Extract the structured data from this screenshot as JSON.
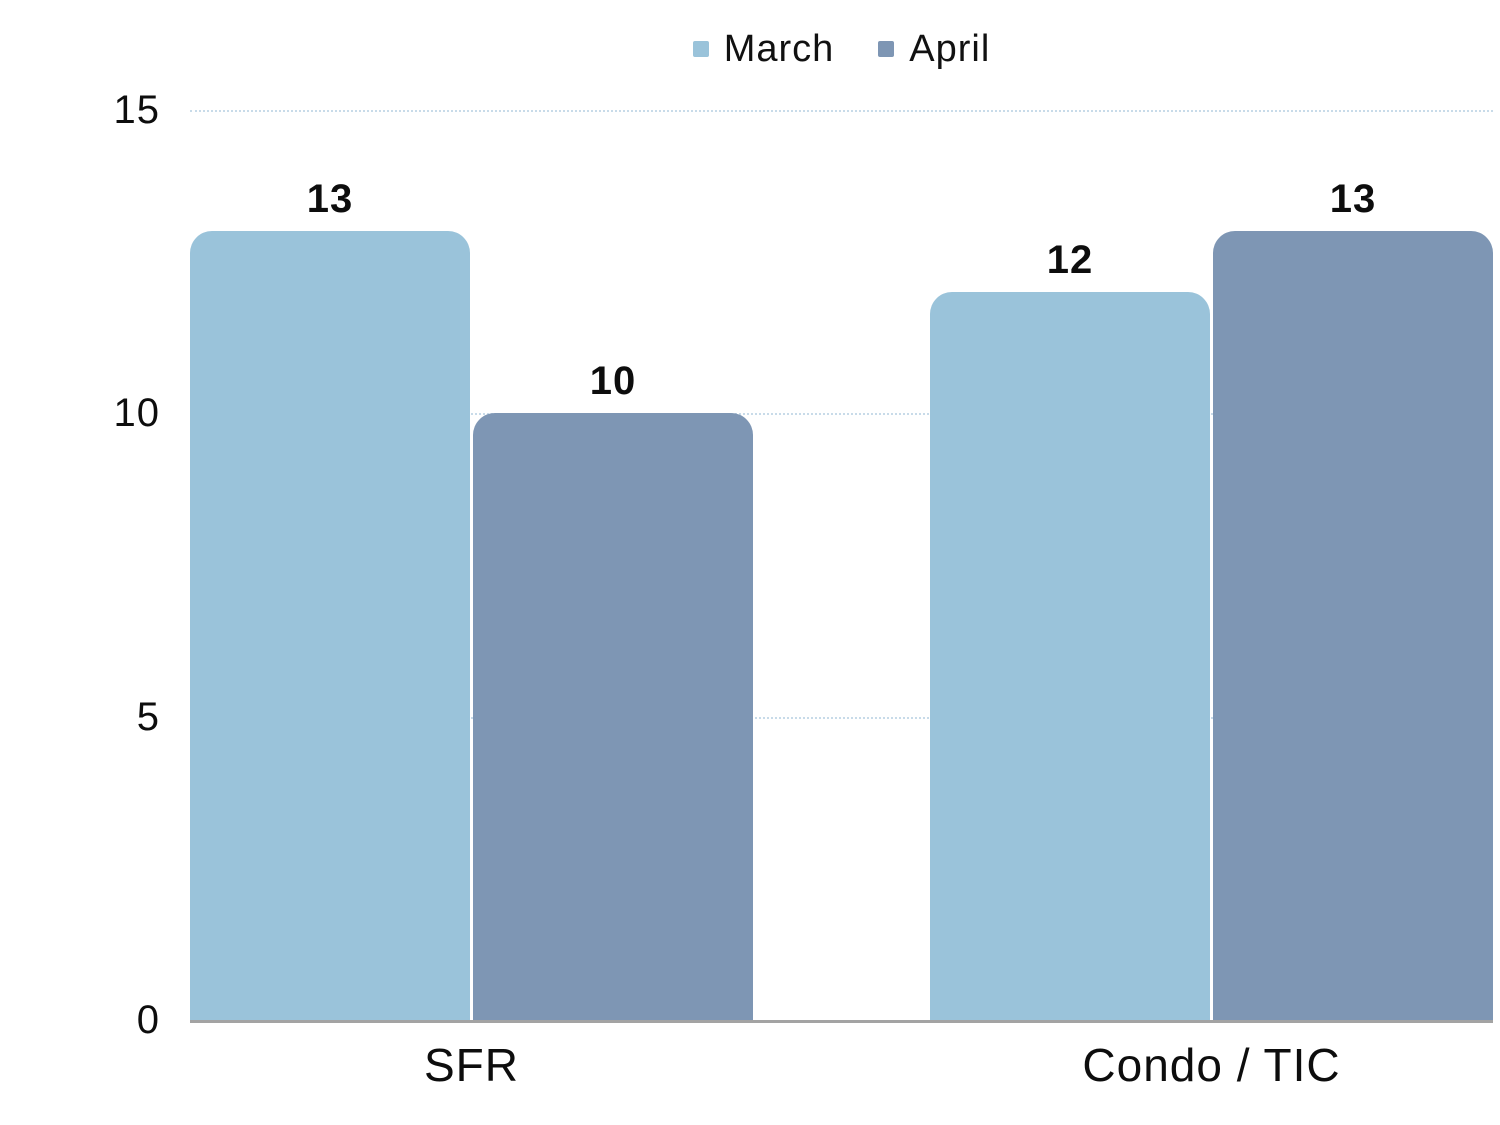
{
  "chart_data": {
    "type": "bar",
    "title": "",
    "categories": [
      "SFR",
      "Condo / TIC"
    ],
    "series": [
      {
        "name": "March",
        "color": "#9ac3da",
        "values": [
          13,
          12
        ]
      },
      {
        "name": "April",
        "color": "#7e96b4",
        "values": [
          10,
          13
        ]
      }
    ],
    "ylim": [
      0,
      15
    ],
    "yticks": [
      0,
      5,
      10,
      15
    ],
    "grid": true,
    "legend_position": "top",
    "data_labels": true
  },
  "colors": {
    "march": "#9ac3da",
    "april": "#7e96b4",
    "gridline": "#c8dbe9",
    "baseline": "#a3a3a3",
    "text": "#0d0d0d",
    "background": "#ffffff"
  }
}
